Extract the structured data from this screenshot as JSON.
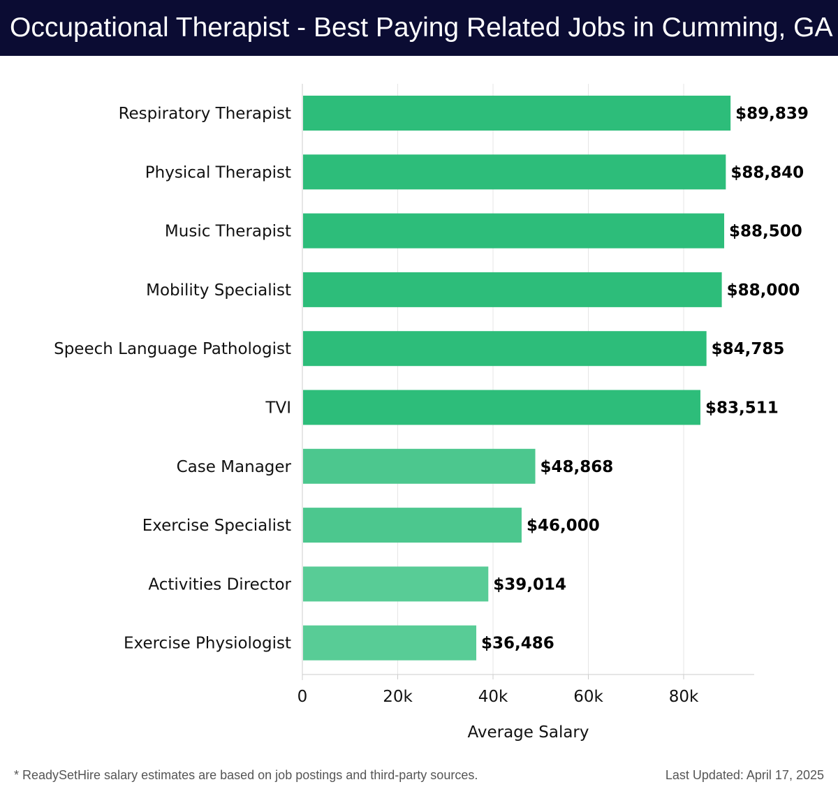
{
  "header": {
    "title": "Occupational Therapist - Best Paying Related Jobs in Cumming, GA"
  },
  "chart_data": {
    "type": "bar",
    "orientation": "horizontal",
    "categories": [
      "Respiratory Therapist",
      "Physical Therapist",
      "Music Therapist",
      "Mobility Specialist",
      "Speech Language Pathologist",
      "TVI",
      "Case Manager",
      "Exercise Specialist",
      "Activities Director",
      "Exercise Physiologist"
    ],
    "values": [
      89839,
      88840,
      88500,
      88000,
      84785,
      83511,
      48868,
      46000,
      39014,
      36486
    ],
    "value_labels": [
      "$89,839",
      "$88,840",
      "$88,500",
      "$88,000",
      "$84,785",
      "$83,511",
      "$48,868",
      "$46,000",
      "$39,014",
      "$36,486"
    ],
    "xlabel": "Average Salary",
    "ylabel": "",
    "xlim": [
      0,
      94500
    ],
    "xticks": [
      0,
      20000,
      40000,
      60000,
      80000
    ],
    "xtick_labels": [
      "0",
      "20k",
      "40k",
      "60k",
      "80k"
    ],
    "grid": true,
    "colors": {
      "high": "#2dbd7a",
      "mid": "#4cc78e",
      "low": "#58cc96",
      "grid": "#e6e6e6",
      "axis": "#cccccc"
    }
  },
  "footer": {
    "note": "* ReadySetHire salary estimates are based on job postings and third-party sources.",
    "updated": "Last Updated: April 17, 2025"
  }
}
